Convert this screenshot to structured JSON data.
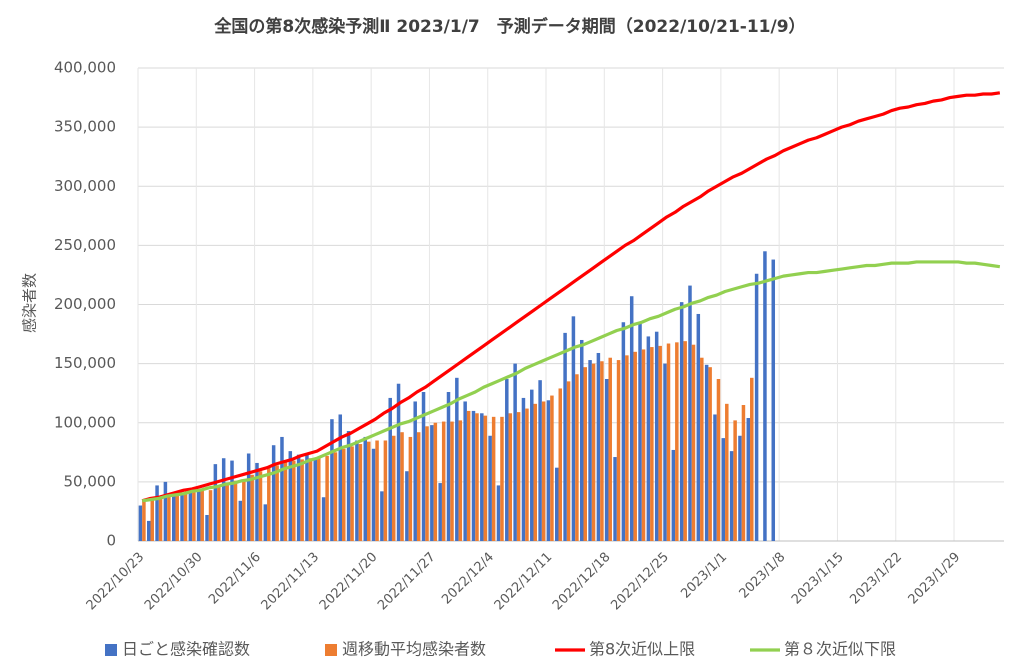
{
  "chart_data": {
    "type": "bar-line",
    "title": "全国の第8次感染予測Ⅱ  2023/1/7　予測データ期間（2022/10/21-11/9）",
    "y_label": "感染者数",
    "categories": [
      "2022/10/23",
      null,
      null,
      null,
      null,
      null,
      null,
      "2022/10/30",
      null,
      null,
      null,
      null,
      null,
      null,
      "2022/11/6",
      null,
      null,
      null,
      null,
      null,
      null,
      "2022/11/13",
      null,
      null,
      null,
      null,
      null,
      null,
      "2022/11/20",
      null,
      null,
      null,
      null,
      null,
      null,
      "2022/11/27",
      null,
      null,
      null,
      null,
      null,
      null,
      "2022/12/4",
      null,
      null,
      null,
      null,
      null,
      null,
      "2022/12/11",
      null,
      null,
      null,
      null,
      null,
      null,
      "2022/12/18",
      null,
      null,
      null,
      null,
      null,
      null,
      "2022/12/25",
      null,
      null,
      null,
      null,
      null,
      null,
      "2023/1/1",
      null,
      null,
      null,
      null,
      null,
      null,
      "2023/1/8",
      null,
      null,
      null,
      null,
      null,
      null,
      "2023/1/15",
      null,
      null,
      null,
      null,
      null,
      null,
      "2023/1/22",
      null,
      null,
      null,
      null,
      null,
      null,
      "2023/1/29",
      null,
      null,
      null,
      null,
      null
    ],
    "series": [
      {
        "name": "日ごと感染確認数",
        "kind": "bar",
        "color": "#4472c4",
        "values": [
          30000,
          17000,
          47000,
          50000,
          41000,
          40000,
          43000,
          44000,
          22000,
          65000,
          70000,
          68000,
          34000,
          74000,
          66000,
          31000,
          81000,
          88000,
          76000,
          73000,
          73000,
          70000,
          37000,
          103000,
          107000,
          93000,
          85000,
          88000,
          78000,
          42000,
          121000,
          133000,
          59000,
          118000,
          126000,
          98000,
          49000,
          126000,
          138000,
          118000,
          110000,
          108000,
          89000,
          47000,
          137000,
          150000,
          121000,
          128000,
          136000,
          119000,
          62000,
          176000,
          190000,
          170000,
          153000,
          159000,
          137000,
          71000,
          185000,
          207000,
          185000,
          173000,
          177000,
          150000,
          77000,
          202000,
          216000,
          192000,
          149000,
          107000,
          87000,
          76000,
          89000,
          104000,
          226000,
          245000,
          238000,
          null,
          null,
          null,
          null,
          null,
          null,
          null,
          null,
          null,
          null,
          null,
          null,
          null,
          null,
          null,
          null,
          null,
          null,
          null,
          null,
          null,
          null,
          null,
          null,
          null,
          null,
          null
        ]
      },
      {
        "name": "週移動平均感染者数",
        "kind": "bar",
        "color": "#ed7d31",
        "values": [
          34000,
          36000,
          38000,
          39000,
          40000,
          41000,
          41000,
          43000,
          43000,
          46000,
          49000,
          51000,
          52000,
          56000,
          59000,
          62000,
          64000,
          67000,
          68000,
          69000,
          70000,
          71000,
          72000,
          75000,
          78000,
          80000,
          82000,
          84000,
          85000,
          85000,
          89000,
          92000,
          88000,
          92000,
          97000,
          100000,
          101000,
          101000,
          102000,
          110000,
          108000,
          106000,
          105000,
          105000,
          108000,
          109000,
          112000,
          116000,
          118000,
          123000,
          129000,
          135000,
          141000,
          147000,
          150000,
          152000,
          155000,
          153000,
          157000,
          160000,
          162000,
          164000,
          165000,
          167000,
          168000,
          169000,
          166000,
          155000,
          147000,
          137000,
          116000,
          102000,
          115000,
          138000,
          null,
          null,
          null,
          null,
          null,
          null,
          null,
          null,
          null,
          null,
          null,
          null,
          null,
          null,
          null,
          null,
          null,
          null,
          null,
          null,
          null,
          null,
          null,
          null,
          null,
          null,
          null,
          null,
          null,
          null
        ]
      },
      {
        "name": "第8次近似上限",
        "kind": "line",
        "color": "#ff0000",
        "values": [
          34000,
          36000,
          37000,
          39000,
          41000,
          43000,
          44000,
          46000,
          48000,
          50000,
          52000,
          54000,
          56000,
          58000,
          60000,
          62000,
          65000,
          67000,
          69000,
          72000,
          74000,
          76000,
          80000,
          84000,
          88000,
          91000,
          95000,
          99000,
          103000,
          108000,
          112000,
          117000,
          121000,
          126000,
          130000,
          135000,
          140000,
          145000,
          150000,
          155000,
          160000,
          165000,
          170000,
          175000,
          180000,
          185000,
          190000,
          195000,
          200000,
          205000,
          210000,
          215000,
          220000,
          225000,
          230000,
          235000,
          240000,
          245000,
          250000,
          254000,
          259000,
          264000,
          269000,
          274000,
          278000,
          283000,
          287000,
          291000,
          296000,
          300000,
          304000,
          308000,
          311000,
          315000,
          319000,
          323000,
          326000,
          330000,
          333000,
          336000,
          339000,
          341000,
          344000,
          347000,
          350000,
          352000,
          355000,
          357000,
          359000,
          361000,
          364000,
          366000,
          367000,
          369000,
          370000,
          372000,
          373000,
          375000,
          376000,
          377000,
          377000,
          378000,
          378000,
          379000
        ]
      },
      {
        "name": "第８次近似下限",
        "kind": "line",
        "color": "#92d050",
        "values": [
          34000,
          35000,
          36000,
          38000,
          39000,
          40000,
          42000,
          43000,
          45000,
          46000,
          48000,
          49000,
          51000,
          52000,
          54000,
          56000,
          58000,
          61000,
          63000,
          65000,
          68000,
          70000,
          73000,
          76000,
          79000,
          81000,
          84000,
          87000,
          90000,
          93000,
          96000,
          99000,
          101000,
          104000,
          107000,
          110000,
          113000,
          116000,
          120000,
          123000,
          126000,
          130000,
          133000,
          136000,
          139000,
          142000,
          146000,
          149000,
          152000,
          155000,
          158000,
          161000,
          164000,
          166000,
          169000,
          172000,
          175000,
          178000,
          180000,
          183000,
          185000,
          188000,
          190000,
          193000,
          196000,
          198000,
          201000,
          203000,
          206000,
          208000,
          211000,
          213000,
          215000,
          217000,
          218000,
          220000,
          222000,
          224000,
          225000,
          226000,
          227000,
          227000,
          228000,
          229000,
          230000,
          231000,
          232000,
          233000,
          233000,
          234000,
          235000,
          235000,
          235000,
          236000,
          236000,
          236000,
          236000,
          236000,
          236000,
          235000,
          235000,
          234000,
          233000,
          232000
        ]
      }
    ],
    "ylim": [
      0,
      400000
    ],
    "yticks": [
      0,
      {
        "value": 50000,
        "label": "50,000"
      },
      {
        "value": 100000,
        "label": "100,000"
      },
      {
        "value": 150000,
        "label": "150,000"
      },
      {
        "value": 200000,
        "label": "200,000"
      },
      {
        "value": 250000,
        "label": "250,000"
      },
      {
        "value": 300000,
        "label": "300,000"
      },
      {
        "value": 350000,
        "label": "350,000"
      },
      {
        "value": 400000,
        "label": "400,000"
      }
    ],
    "grid": true,
    "legend": "bottom"
  }
}
